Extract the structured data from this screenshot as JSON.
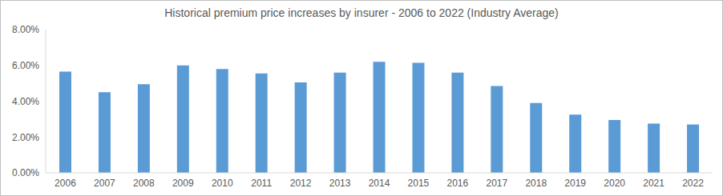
{
  "chart_data": {
    "type": "bar",
    "title": "Historical premium price increases by insurer - 2006 to 2022 (Industry Average)",
    "categories": [
      "2006",
      "2007",
      "2008",
      "2009",
      "2010",
      "2011",
      "2012",
      "2013",
      "2014",
      "2015",
      "2016",
      "2017",
      "2018",
      "2019",
      "2020",
      "2021",
      "2022"
    ],
    "values": [
      5.65,
      4.5,
      4.95,
      6.0,
      5.8,
      5.55,
      5.05,
      5.6,
      6.2,
      6.15,
      5.6,
      4.85,
      3.9,
      3.25,
      2.95,
      2.75,
      2.7
    ],
    "color": "#5b9bd5",
    "ylim": [
      0,
      8
    ],
    "yticks": [
      {
        "value": 0,
        "label": "0.00%"
      },
      {
        "value": 2,
        "label": "2.00%"
      },
      {
        "value": 4,
        "label": "4.00%"
      },
      {
        "value": 6,
        "label": "6.00%"
      },
      {
        "value": 8,
        "label": "8.00%"
      }
    ],
    "grid": false
  }
}
